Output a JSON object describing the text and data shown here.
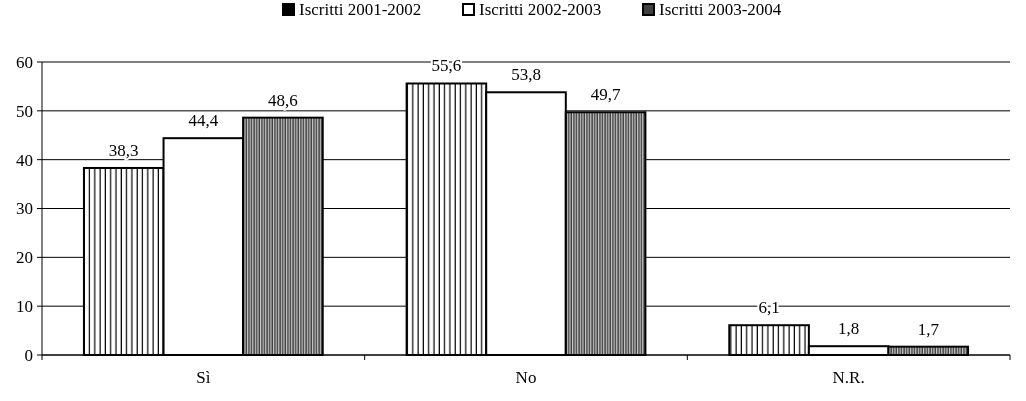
{
  "chart_data": {
    "type": "bar",
    "categories": [
      "Sì",
      "No",
      "N.R."
    ],
    "series": [
      {
        "name": "Iscritti 2001-2002",
        "color": "#000000",
        "values": [
          38.3,
          55.6,
          6.1
        ],
        "value_labels": [
          "38,3",
          "55,6",
          "6,1"
        ]
      },
      {
        "name": "Iscritti 2002-2003",
        "color": "#ffffff",
        "values": [
          44.4,
          53.8,
          1.8
        ],
        "value_labels": [
          "44,4",
          "53,8",
          "1,8"
        ]
      },
      {
        "name": "Iscritti 2003-2004",
        "color": "#404040",
        "values": [
          48.6,
          49.7,
          1.7
        ],
        "value_labels": [
          "48,6",
          "49,7",
          "1,7"
        ]
      }
    ],
    "ylim": [
      0,
      60
    ],
    "yticks": [
      0,
      10,
      20,
      30,
      40,
      50,
      60
    ],
    "grid": "y",
    "legend": "top"
  }
}
